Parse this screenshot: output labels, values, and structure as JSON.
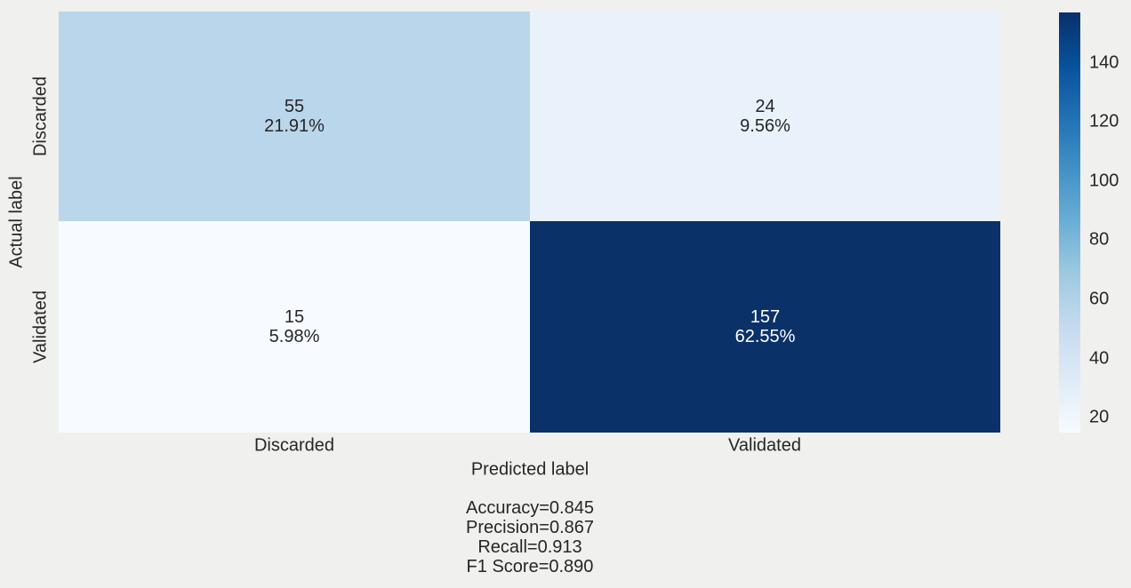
{
  "figure": {
    "background_color": "#f0f0ee",
    "text_color": "#262626"
  },
  "chart_data": {
    "type": "heatmap",
    "subtype": "confusion-matrix",
    "title": "",
    "xlabel": "Predicted label",
    "ylabel": "Actual label",
    "x_categories": [
      "Discarded",
      "Validated"
    ],
    "y_categories": [
      "Discarded",
      "Validated"
    ],
    "matrix": {
      "counts": [
        [
          55,
          24
        ],
        [
          15,
          157
        ]
      ],
      "percents": [
        [
          21.91,
          9.56
        ],
        [
          5.98,
          62.55
        ]
      ]
    },
    "cells": [
      {
        "actual": "Discarded",
        "predicted": "Discarded",
        "count": "55",
        "percent": "21.91%",
        "color": "#b9d6eb",
        "text_color": "#262626"
      },
      {
        "actual": "Discarded",
        "predicted": "Validated",
        "count": "24",
        "percent": "9.56%",
        "color": "#e9f1fa",
        "text_color": "#262626"
      },
      {
        "actual": "Validated",
        "predicted": "Discarded",
        "count": "15",
        "percent": "5.98%",
        "color": "#f7fbff",
        "text_color": "#262626"
      },
      {
        "actual": "Validated",
        "predicted": "Validated",
        "count": "157",
        "percent": "62.55%",
        "color": "#0a3168",
        "text_color": "#ffffff"
      }
    ],
    "colorbar": {
      "min": 15,
      "max": 157,
      "ticks": [
        20,
        40,
        60,
        80,
        100,
        120,
        140
      ],
      "colormap": "Blues",
      "low_color": "#f7fbff",
      "high_color": "#08306b"
    },
    "legend_position": "right",
    "grid": false
  },
  "metrics": {
    "accuracy": 0.845,
    "precision": 0.867,
    "recall": 0.913,
    "f1_score": 0.89,
    "lines": [
      "Accuracy=0.845",
      "Precision=0.867",
      "Recall=0.913",
      "F1 Score=0.890"
    ]
  }
}
